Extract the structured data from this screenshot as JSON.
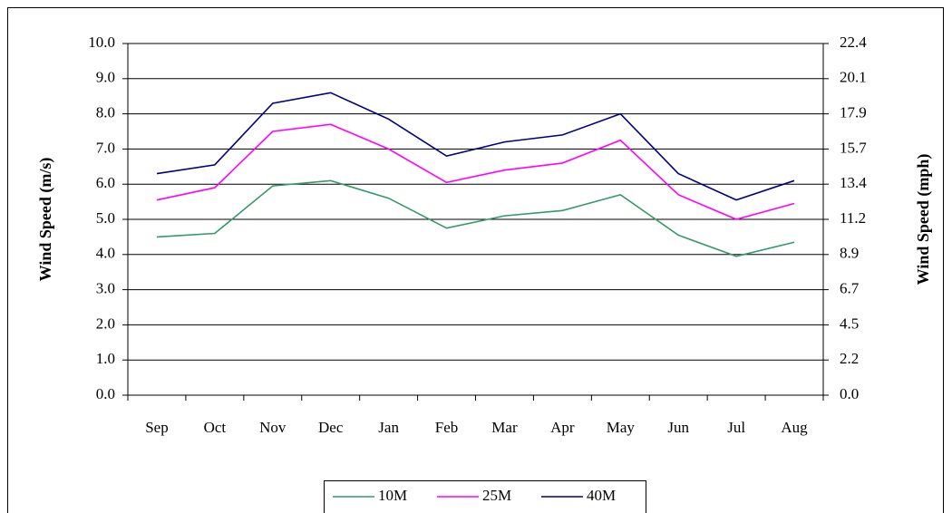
{
  "chart_data": {
    "type": "line",
    "y_label": "Wind Speed (m/s)",
    "y2_label": "Wind Speed (mph)",
    "categories": [
      "Sep",
      "Oct",
      "Nov",
      "Dec",
      "Jan",
      "Feb",
      "Mar",
      "Apr",
      "May",
      "Jun",
      "Jul",
      "Aug"
    ],
    "series": [
      {
        "name": "10M",
        "color": "#339966",
        "values": [
          4.5,
          4.6,
          5.95,
          6.1,
          5.6,
          4.75,
          5.1,
          5.25,
          5.7,
          4.55,
          3.95,
          4.35
        ]
      },
      {
        "name": "25M",
        "color": "#ff00ff",
        "values": [
          5.55,
          5.9,
          7.5,
          7.7,
          7.0,
          6.05,
          6.4,
          6.6,
          7.25,
          5.7,
          5.0,
          5.45
        ]
      },
      {
        "name": "40M",
        "color": "#000080",
        "values": [
          6.3,
          6.55,
          8.3,
          8.6,
          7.85,
          6.8,
          7.2,
          7.4,
          8.0,
          6.3,
          5.55,
          6.1
        ]
      }
    ],
    "ylim": [
      0,
      10
    ],
    "yticks": [
      {
        "value": 0,
        "label": "0.0"
      },
      {
        "value": 1,
        "label": "1.0"
      },
      {
        "value": 2,
        "label": "2.0"
      },
      {
        "value": 3,
        "label": "3.0"
      },
      {
        "value": 4,
        "label": "4.0"
      },
      {
        "value": 5,
        "label": "5.0"
      },
      {
        "value": 6,
        "label": "6.0"
      },
      {
        "value": 7,
        "label": "7.0"
      },
      {
        "value": 8,
        "label": "8.0"
      },
      {
        "value": 9,
        "label": "9.0"
      },
      {
        "value": 10,
        "label": "10.0"
      }
    ],
    "y2lim": [
      0,
      22.37
    ],
    "y2ticks": [
      {
        "value": 0,
        "label": "0.0"
      },
      {
        "value": 2.237,
        "label": "2.2"
      },
      {
        "value": 4.474,
        "label": "4.5"
      },
      {
        "value": 6.711,
        "label": "6.7"
      },
      {
        "value": 8.948,
        "label": "8.9"
      },
      {
        "value": 11.185,
        "label": "11.2"
      },
      {
        "value": 13.422,
        "label": "13.4"
      },
      {
        "value": 15.659,
        "label": "15.7"
      },
      {
        "value": 17.896,
        "label": "17.9"
      },
      {
        "value": 20.133,
        "label": "20.1"
      },
      {
        "value": 22.37,
        "label": "22.4"
      }
    ],
    "grid": true,
    "legend": "bottom"
  }
}
